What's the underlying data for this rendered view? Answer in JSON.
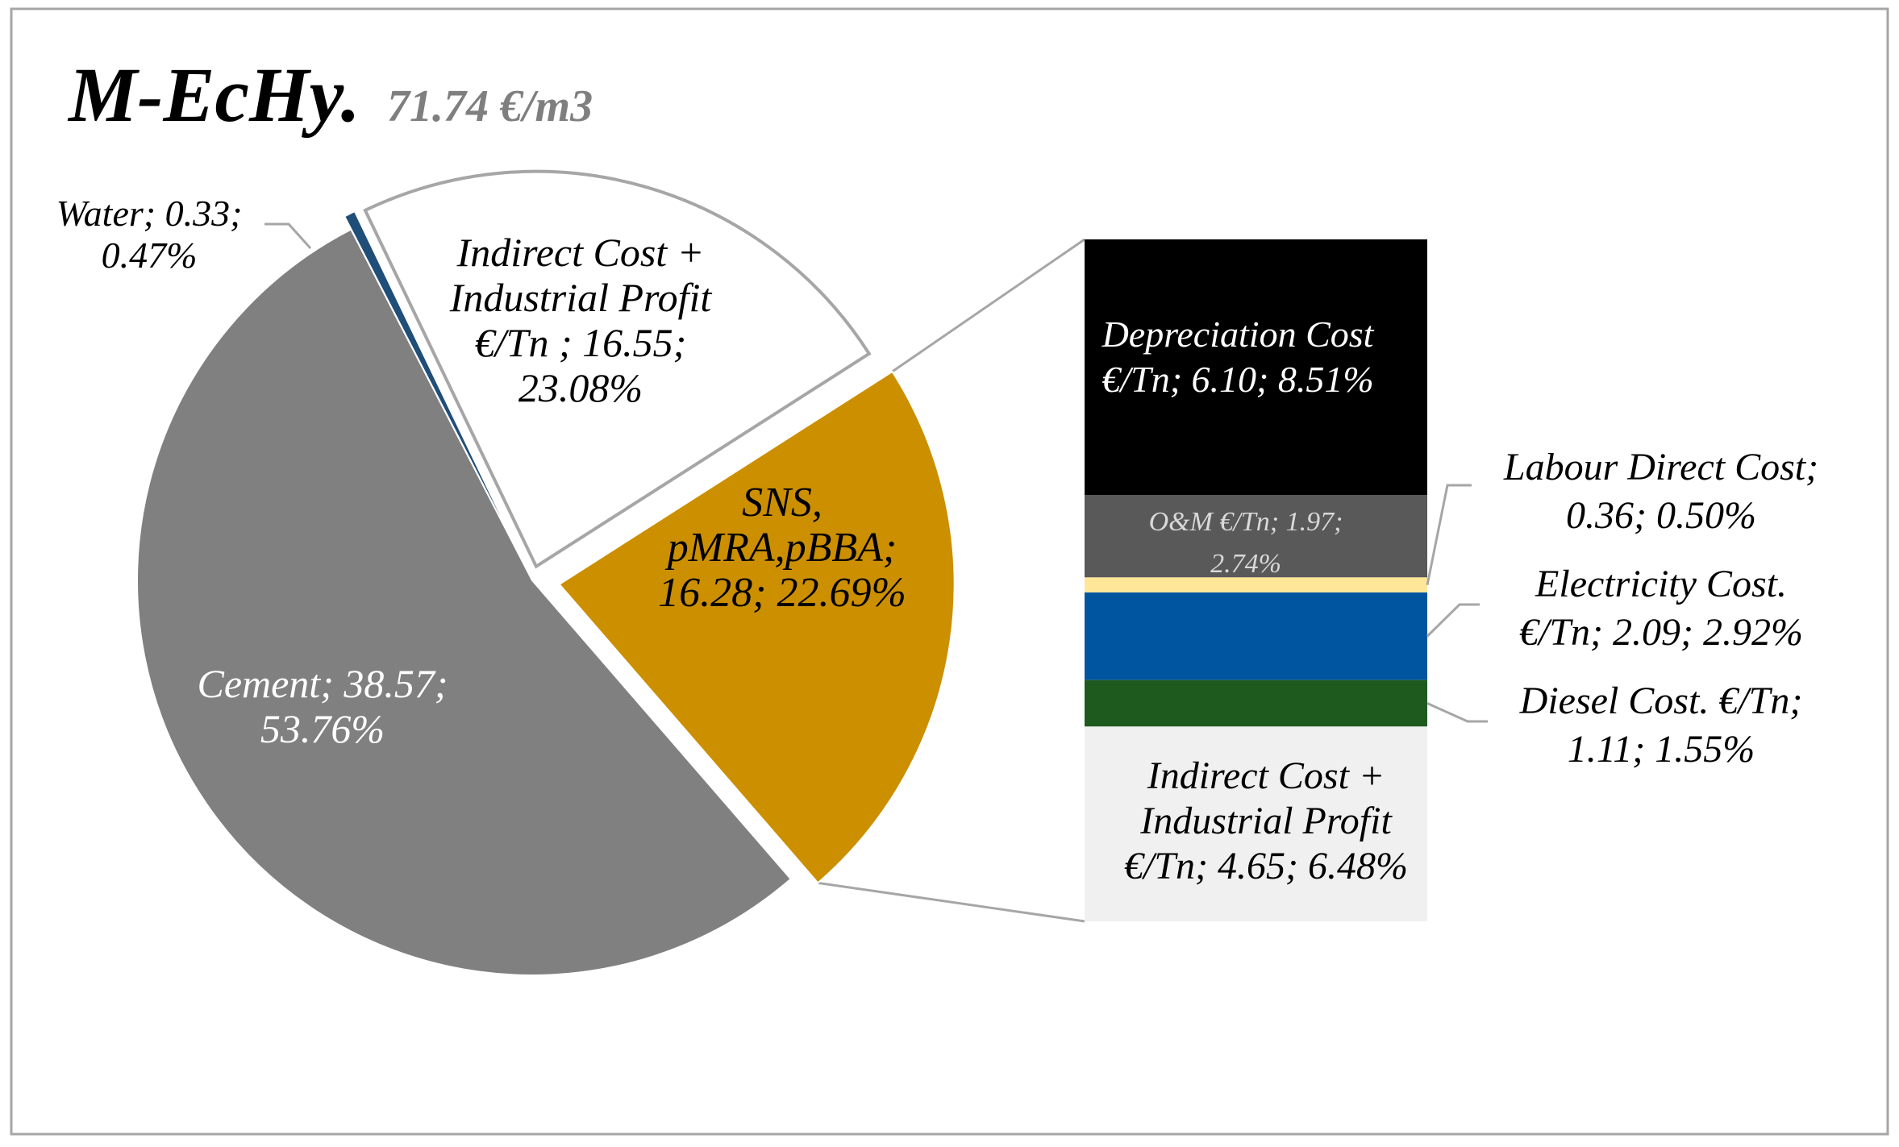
{
  "chart_data": {
    "type": "bar-of-pie",
    "title": "M-EcHy.",
    "subtitle": "71.74 €/m3",
    "pie": [
      {
        "label": "Water",
        "value": 0.33,
        "percent": "0.47%",
        "color": "#1f4e79",
        "text_lines": [
          "Water; 0.33;",
          "0.47%"
        ]
      },
      {
        "label": "Indirect Cost + Industrial Profit €/Tn",
        "value": 16.55,
        "percent": "23.08%",
        "color": "#ffffff",
        "text_lines": [
          "Indirect Cost +",
          "Industrial Profit",
          "€/Tn ; 16.55;",
          "23.08%"
        ]
      },
      {
        "label": "SNS, pMRA,pBBA",
        "value": 16.28,
        "percent": "22.69%",
        "color": "#cc8f00",
        "text_lines": [
          "SNS,",
          "pMRA,pBBA;",
          "16.28; 22.69%"
        ]
      },
      {
        "label": "Cement",
        "value": 38.57,
        "percent": "53.76%",
        "color": "#808080",
        "text_lines": [
          "Cement; 38.57;",
          "53.76%"
        ]
      }
    ],
    "bar": [
      {
        "label": "Depreciation Cost €/Tn",
        "value": 6.1,
        "percent": "8.51%",
        "color": "#000000",
        "text_lines": [
          "Depreciation Cost",
          "€/Tn; 6.10; 8.51%"
        ]
      },
      {
        "label": "O&M €/Tn",
        "value": 1.97,
        "percent": "2.74%",
        "color": "#595959",
        "text_lines": [
          "O&M €/Tn; 1.97;",
          "2.74%"
        ]
      },
      {
        "label": "Labour Direct Cost",
        "value": 0.36,
        "percent": "0.50%",
        "color": "#ffe699",
        "text_lines": [
          "Labour Direct Cost;",
          "0.36; 0.50%"
        ]
      },
      {
        "label": "Electricity Cost. €/Tn",
        "value": 2.09,
        "percent": "2.92%",
        "color": "#0055a0",
        "text_lines": [
          "Electricity Cost.",
          "€/Tn; 2.09; 2.92%"
        ]
      },
      {
        "label": "Diesel Cost. €/Tn",
        "value": 1.11,
        "percent": "1.55%",
        "color": "#1e5a1e",
        "text_lines": [
          "Diesel Cost. €/Tn;",
          "1.11; 1.55%"
        ]
      },
      {
        "label": "Indirect Cost + Industrial Profit €/Tn",
        "value": 4.65,
        "percent": "6.48%",
        "color": "#f0f0f0",
        "text_lines": [
          "Indirect Cost +",
          "Industrial Profit",
          "€/Tn; 4.65; 6.48%"
        ]
      }
    ]
  }
}
